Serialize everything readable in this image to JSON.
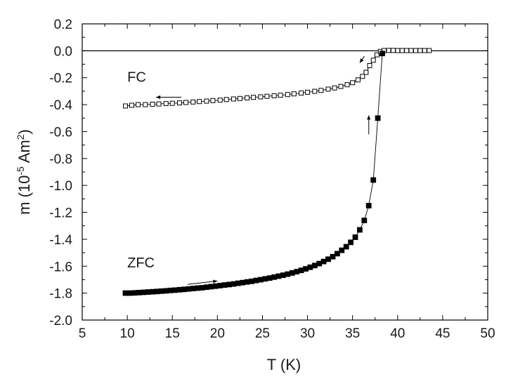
{
  "chart_data": {
    "type": "scatter",
    "xlabel": "T (K)",
    "ylabel_prefix": "m (10",
    "ylabel_exp1": "-5",
    "ylabel_mid": " Am",
    "ylabel_exp2": "2",
    "ylabel_suffix": ")",
    "xlim": [
      5,
      50
    ],
    "ylim": [
      -2.0,
      0.2
    ],
    "xticks": [
      5,
      10,
      15,
      20,
      25,
      30,
      35,
      40,
      45,
      50
    ],
    "xtick_labels": [
      "5",
      "10",
      "15",
      "20",
      "25",
      "30",
      "35",
      "40",
      "45",
      "50"
    ],
    "yticks": [
      0.2,
      0.0,
      -0.2,
      -0.4,
      -0.6,
      -0.8,
      -1.0,
      -1.2,
      -1.4,
      -1.6,
      -1.8,
      -2.0
    ],
    "ytick_labels": [
      "0.2",
      "0.0",
      "-0.2",
      "-0.4",
      "-0.6",
      "-0.8",
      "-1.0",
      "-1.2",
      "-1.4",
      "-1.6",
      "-1.8",
      "-2.0"
    ],
    "reference_line_y": 0.0,
    "grid": false,
    "series": [
      {
        "name": "FC",
        "marker": "open-square",
        "color": "#000000",
        "points": [
          [
            9.8,
            -0.41
          ],
          [
            10.5,
            -0.405
          ],
          [
            11.2,
            -0.4
          ],
          [
            12.0,
            -0.4
          ],
          [
            12.8,
            -0.397
          ],
          [
            13.5,
            -0.395
          ],
          [
            14.3,
            -0.392
          ],
          [
            15.0,
            -0.39
          ],
          [
            15.8,
            -0.387
          ],
          [
            16.5,
            -0.384
          ],
          [
            17.3,
            -0.38
          ],
          [
            18.0,
            -0.377
          ],
          [
            18.8,
            -0.374
          ],
          [
            19.5,
            -0.37
          ],
          [
            20.3,
            -0.366
          ],
          [
            21.0,
            -0.362
          ],
          [
            21.8,
            -0.358
          ],
          [
            22.5,
            -0.354
          ],
          [
            23.3,
            -0.35
          ],
          [
            24.0,
            -0.346
          ],
          [
            24.8,
            -0.342
          ],
          [
            25.5,
            -0.338
          ],
          [
            26.3,
            -0.334
          ],
          [
            27.0,
            -0.33
          ],
          [
            27.8,
            -0.325
          ],
          [
            28.5,
            -0.32
          ],
          [
            29.3,
            -0.314
          ],
          [
            30.0,
            -0.308
          ],
          [
            30.8,
            -0.301
          ],
          [
            31.5,
            -0.294
          ],
          [
            32.3,
            -0.285
          ],
          [
            33.0,
            -0.276
          ],
          [
            33.7,
            -0.265
          ],
          [
            34.4,
            -0.252
          ],
          [
            35.0,
            -0.237
          ],
          [
            35.6,
            -0.216
          ],
          [
            36.1,
            -0.19
          ],
          [
            36.5,
            -0.16
          ],
          [
            36.9,
            -0.11
          ],
          [
            37.3,
            -0.07
          ],
          [
            37.7,
            -0.03
          ],
          [
            38.1,
            -0.005
          ],
          [
            38.5,
            0.002
          ],
          [
            39.0,
            0.003
          ],
          [
            39.5,
            0.003
          ],
          [
            40.0,
            0.002
          ],
          [
            40.5,
            0.002
          ],
          [
            41.0,
            0.002
          ],
          [
            41.5,
            0.002
          ],
          [
            42.0,
            0.002
          ],
          [
            42.5,
            0.002
          ],
          [
            43.0,
            0.002
          ],
          [
            43.5,
            0.002
          ]
        ]
      },
      {
        "name": "ZFC",
        "marker": "filled-square",
        "color": "#000000",
        "points": [
          [
            9.8,
            -1.8
          ],
          [
            10.3,
            -1.8
          ],
          [
            10.8,
            -1.798
          ],
          [
            11.3,
            -1.796
          ],
          [
            11.8,
            -1.794
          ],
          [
            12.3,
            -1.792
          ],
          [
            12.8,
            -1.79
          ],
          [
            13.3,
            -1.788
          ],
          [
            13.8,
            -1.785
          ],
          [
            14.3,
            -1.783
          ],
          [
            14.8,
            -1.78
          ],
          [
            15.3,
            -1.778
          ],
          [
            15.8,
            -1.775
          ],
          [
            16.3,
            -1.772
          ],
          [
            16.8,
            -1.769
          ],
          [
            17.3,
            -1.766
          ],
          [
            17.8,
            -1.763
          ],
          [
            18.3,
            -1.76
          ],
          [
            18.8,
            -1.756
          ],
          [
            19.3,
            -1.752
          ],
          [
            19.8,
            -1.748
          ],
          [
            20.3,
            -1.744
          ],
          [
            20.8,
            -1.74
          ],
          [
            21.3,
            -1.736
          ],
          [
            21.8,
            -1.732
          ],
          [
            22.3,
            -1.727
          ],
          [
            22.8,
            -1.722
          ],
          [
            23.3,
            -1.717
          ],
          [
            23.8,
            -1.712
          ],
          [
            24.3,
            -1.706
          ],
          [
            24.8,
            -1.7
          ],
          [
            25.3,
            -1.694
          ],
          [
            25.8,
            -1.688
          ],
          [
            26.3,
            -1.681
          ],
          [
            26.8,
            -1.674
          ],
          [
            27.3,
            -1.667
          ],
          [
            27.8,
            -1.659
          ],
          [
            28.3,
            -1.65
          ],
          [
            28.8,
            -1.641
          ],
          [
            29.3,
            -1.631
          ],
          [
            29.8,
            -1.62
          ],
          [
            30.3,
            -1.608
          ],
          [
            30.8,
            -1.595
          ],
          [
            31.3,
            -1.581
          ],
          [
            31.8,
            -1.565
          ],
          [
            32.3,
            -1.548
          ],
          [
            32.8,
            -1.529
          ],
          [
            33.3,
            -1.507
          ],
          [
            33.8,
            -1.482
          ],
          [
            34.3,
            -1.455
          ],
          [
            34.8,
            -1.423
          ],
          [
            35.3,
            -1.385
          ],
          [
            35.8,
            -1.33
          ],
          [
            36.3,
            -1.26
          ],
          [
            36.8,
            -1.15
          ],
          [
            37.3,
            -0.96
          ],
          [
            37.8,
            -0.5
          ],
          [
            38.3,
            -0.02
          ]
        ]
      }
    ],
    "annotations": [
      {
        "text": "FC",
        "x": 10.0,
        "y": -0.23
      },
      {
        "text": "ZFC",
        "x": 10.0,
        "y": -1.61
      }
    ],
    "arrows": [
      {
        "series": "FC",
        "from": [
          16.0,
          -0.345
        ],
        "to": [
          13.2,
          -0.345
        ]
      },
      {
        "series": "FC",
        "from": [
          36.3,
          -0.04
        ],
        "to": [
          35.8,
          -0.09
        ]
      },
      {
        "series": "ZFC",
        "from": [
          16.7,
          -1.735
        ],
        "to": [
          20.0,
          -1.71
        ]
      },
      {
        "series": "ZFC",
        "from": [
          36.8,
          -0.62
        ],
        "to": [
          36.8,
          -0.48
        ]
      }
    ]
  }
}
